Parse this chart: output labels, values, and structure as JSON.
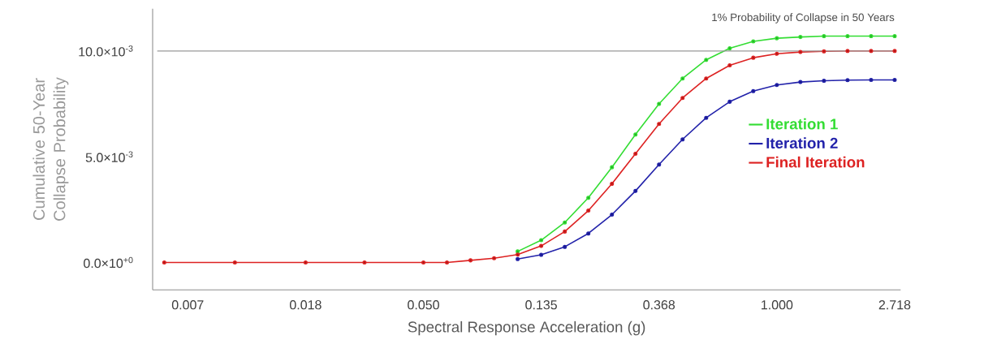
{
  "chart_data": {
    "type": "line",
    "xlabel": "Spectral Response Acceleration (g)",
    "ylabel": "Cumulative 50-Year Collapse Probability",
    "log": "x",
    "x": [
      0.00552,
      0.01005,
      0.01832,
      0.0302,
      0.04979,
      0.06081,
      0.07427,
      0.09072,
      0.1108,
      0.1353,
      0.1653,
      0.2019,
      0.2466,
      0.3012,
      0.3679,
      0.4493,
      0.5488,
      0.6703,
      0.8187,
      1.0,
      1.2214,
      1.4918,
      1.8221,
      2.2255,
      2.7183
    ],
    "series": [
      {
        "name": "Iteration 1",
        "color": "#33dd33",
        "values": [
          null,
          null,
          null,
          null,
          null,
          null,
          null,
          null,
          0.00052,
          0.00105,
          0.00189,
          0.00306,
          0.0045,
          0.00605,
          0.0075,
          0.0087,
          0.00958,
          0.01013,
          0.01045,
          0.0106,
          0.01066,
          0.0107,
          0.0107,
          0.0107,
          0.0107
        ]
      },
      {
        "name": "Iteration 2",
        "color": "#2222aa",
        "values": [
          null,
          null,
          null,
          null,
          null,
          null,
          null,
          null,
          0.00016,
          0.00036,
          0.00074,
          0.00137,
          0.00226,
          0.00338,
          0.00463,
          0.00582,
          0.00684,
          0.0076,
          0.0081,
          0.00839,
          0.00853,
          0.00859,
          0.00862,
          0.00863,
          0.00863
        ]
      },
      {
        "name": "Final Iteration",
        "color": "#dd2222",
        "values": [
          0,
          0,
          0,
          0,
          0,
          0,
          0.0001,
          0.0002,
          0.00037,
          0.00078,
          0.00146,
          0.00245,
          0.00372,
          0.00514,
          0.00655,
          0.00778,
          0.0087,
          0.00932,
          0.00968,
          0.00987,
          0.00995,
          0.00998,
          0.01,
          0.01,
          0.01
        ]
      }
    ],
    "xlim": [
      0.005,
      2.86
    ],
    "ylim": [
      -0.0013,
      0.012
    ],
    "xticks": [
      {
        "value": 0.006738,
        "label": "0.007"
      },
      {
        "value": 0.018316,
        "label": "0.018"
      },
      {
        "value": 0.049787,
        "label": "0.050"
      },
      {
        "value": 0.135335,
        "label": "0.135"
      },
      {
        "value": 0.367879,
        "label": "0.368"
      },
      {
        "value": 1.0,
        "label": "1.000"
      },
      {
        "value": 2.718282,
        "label": "2.718"
      }
    ],
    "yticks": [
      {
        "value": 0,
        "label": "0.0×10$^{+0}$"
      },
      {
        "value": 0.005,
        "label": "5.0×10$^{-3}$"
      },
      {
        "value": 0.01,
        "label": "10.0×10$^{-3}$"
      }
    ],
    "ref_lines": [
      {
        "axis": "y",
        "value": 0.01,
        "label": "1% Probability of Collapse in 50 Years",
        "color": "#999999"
      }
    ],
    "grid": false,
    "legend": "right",
    "marker": "circle",
    "line_style": "solid"
  }
}
